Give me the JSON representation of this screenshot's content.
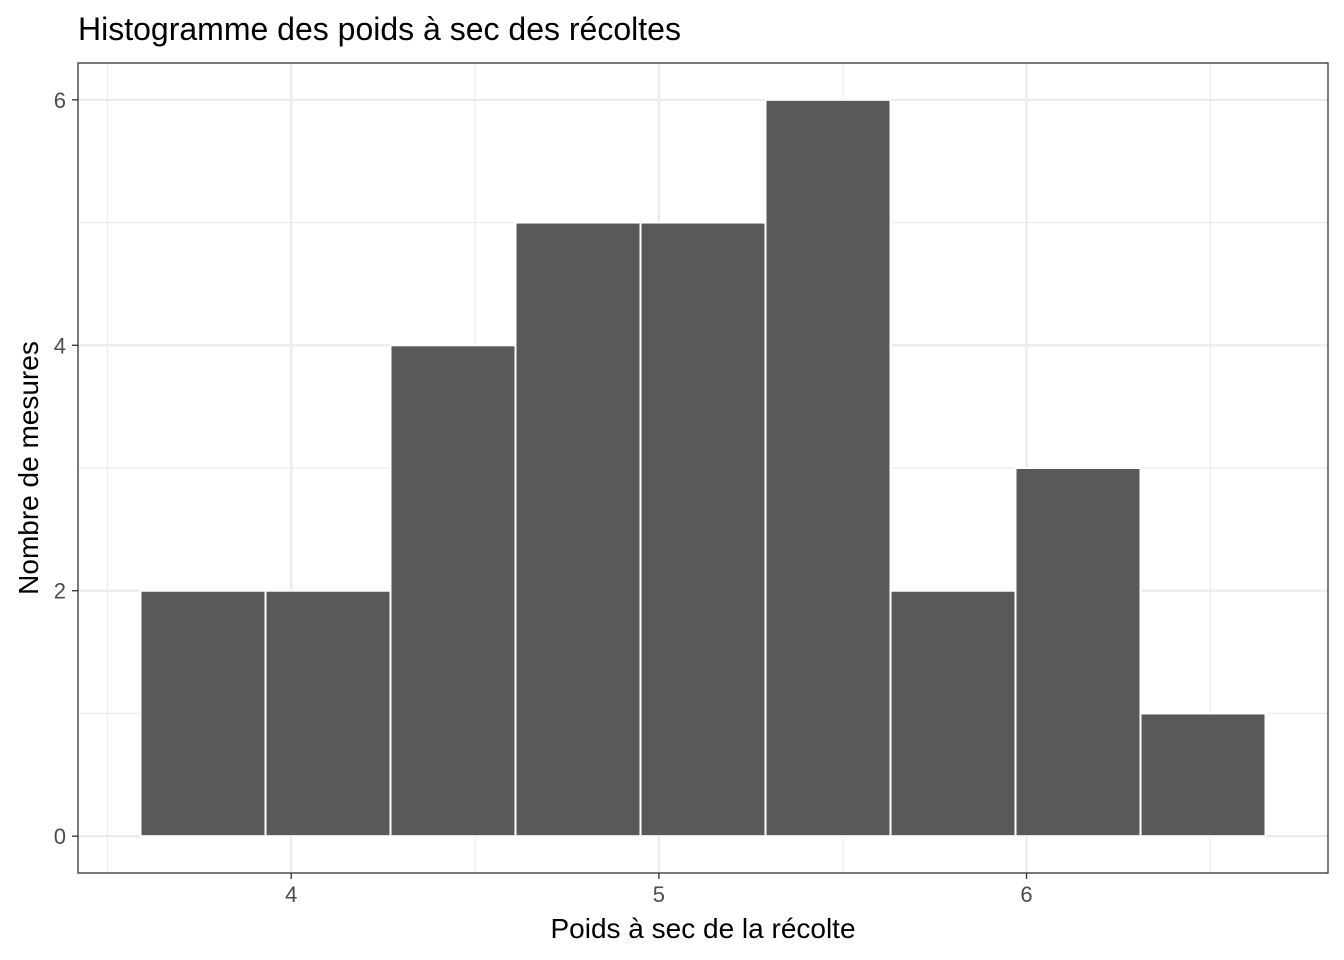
{
  "chart_data": {
    "type": "bar",
    "title": "Histogramme des poids à sec des récoltes",
    "xlabel": "Poids à sec de la récolte",
    "ylabel": "Nombre de mesures",
    "bins": [
      {
        "x0": 3.59,
        "x1": 3.93,
        "count": 2
      },
      {
        "x0": 3.93,
        "x1": 4.27,
        "count": 2
      },
      {
        "x0": 4.27,
        "x1": 4.61,
        "count": 4
      },
      {
        "x0": 4.61,
        "x1": 4.95,
        "count": 5
      },
      {
        "x0": 4.95,
        "x1": 5.29,
        "count": 5
      },
      {
        "x0": 5.29,
        "x1": 5.63,
        "count": 6
      },
      {
        "x0": 5.63,
        "x1": 5.97,
        "count": 2
      },
      {
        "x0": 5.97,
        "x1": 6.31,
        "count": 3
      },
      {
        "x0": 6.31,
        "x1": 6.65,
        "count": 1
      }
    ],
    "xlim": [
      3.42,
      6.82
    ],
    "ylim": [
      -0.3,
      6.3
    ],
    "xticks": [
      4,
      5,
      6
    ],
    "yticks": [
      0,
      2,
      4,
      6
    ],
    "grid": true,
    "colors": {
      "bar_fill": "#595959",
      "bar_border": "#ffffff",
      "grid": "#ebebeb",
      "panel_border": "#333333",
      "tick_label": "#4d4d4d"
    }
  }
}
